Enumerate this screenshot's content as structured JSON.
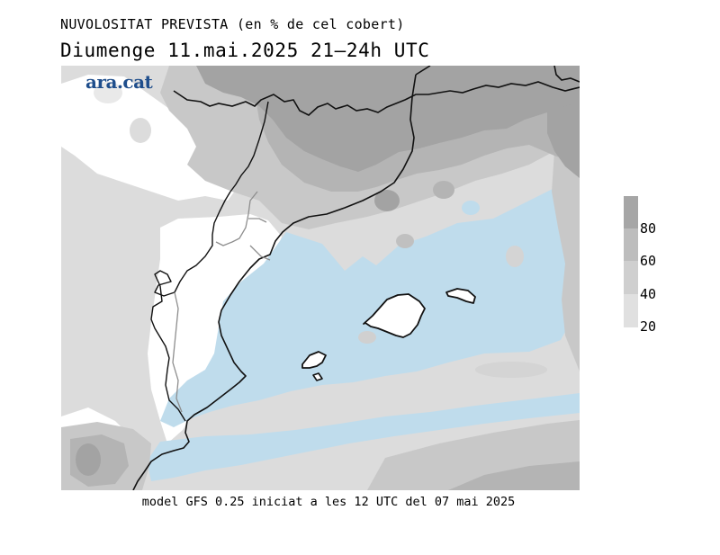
{
  "header": {
    "title": "NUVOLOSITAT PREVISTA (en % de cel cobert)",
    "subtitle": "Diumenge  11.mai.2025 21–24h UTC"
  },
  "logo": {
    "text": "ara.cat"
  },
  "footer": {
    "caption": "model GFS 0.25 iniciat a les 12 UTC del 07 mai 2025"
  },
  "legend": {
    "ticks": [
      "80",
      "60",
      "40",
      "20"
    ],
    "colors": [
      "#a6a6a6",
      "#bdbdbd",
      "#cfcfcf",
      "#e0e0e0"
    ]
  },
  "map": {
    "colors": {
      "land_clear": "#ffffff",
      "sea_clear": "#bfdcec",
      "cloud_20_40": "#dcdcdc",
      "cloud_40_60": "#c8c8c8",
      "cloud_60_80": "#b4b4b4",
      "cloud_80_100": "#a3a3a3",
      "coast": "#111111",
      "inner_border": "#8e8e8e"
    }
  }
}
